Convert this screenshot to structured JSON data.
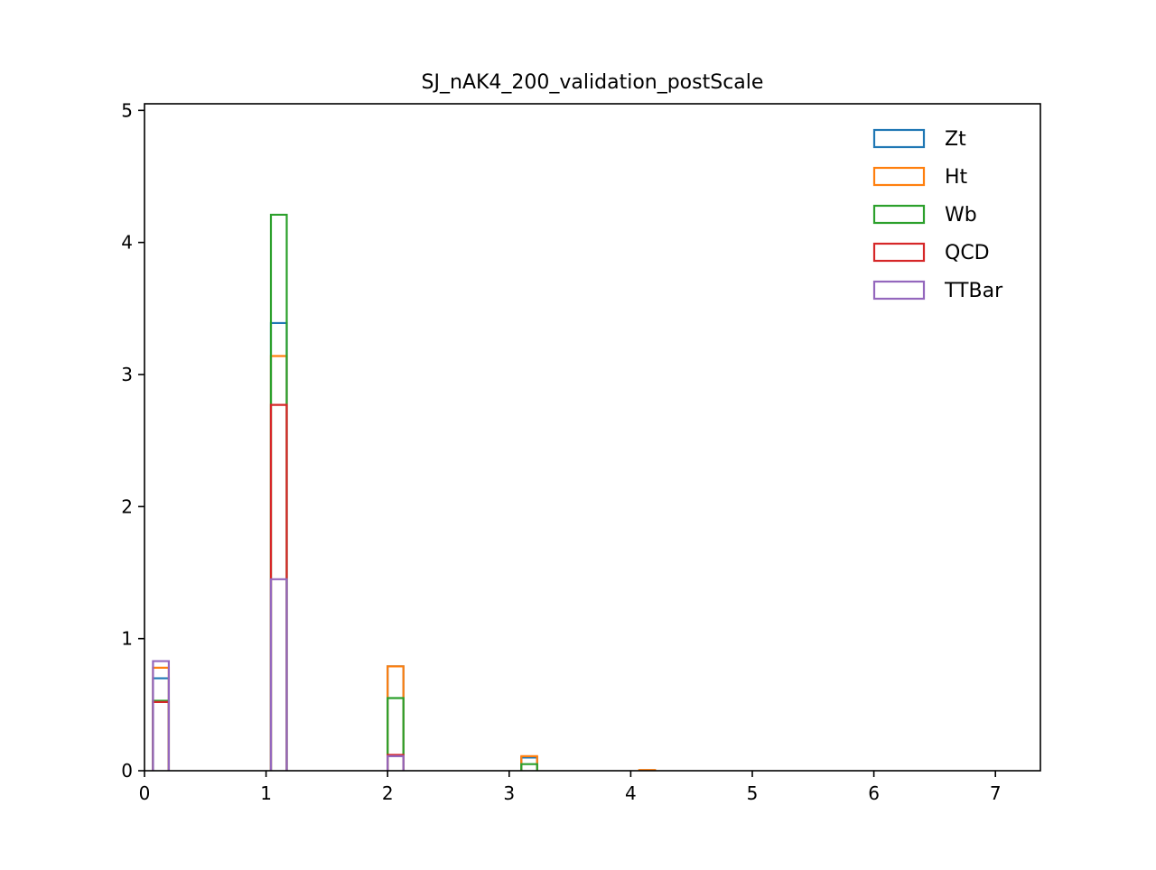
{
  "chart_data": {
    "type": "bar",
    "histtype": "step",
    "title": "SJ_nAK4_200_validation_postScale",
    "xlabel": "",
    "ylabel": "",
    "xlim": [
      0,
      7.37
    ],
    "ylim": [
      0,
      5.05
    ],
    "xticks": [
      "0",
      "1",
      "2",
      "3",
      "4",
      "5",
      "6",
      "7"
    ],
    "yticks": [
      "0",
      "1",
      "2",
      "3",
      "4",
      "5"
    ],
    "legend_position": "top-right",
    "bins": [
      [
        0.07,
        0.2
      ],
      [
        1.04,
        1.17
      ],
      [
        2.0,
        2.13
      ],
      [
        3.1,
        3.23
      ],
      [
        4.07,
        4.2
      ]
    ],
    "series": [
      {
        "name": "Zt",
        "color": "#1f77b4",
        "values": [
          0.7,
          3.39,
          0.79,
          0.1,
          0.0
        ]
      },
      {
        "name": "Ht",
        "color": "#ff7f0e",
        "values": [
          0.78,
          3.14,
          0.79,
          0.11,
          0.005
        ]
      },
      {
        "name": "Wb",
        "color": "#2ca02c",
        "values": [
          0.53,
          4.21,
          0.55,
          0.05,
          0.0
        ]
      },
      {
        "name": "QCD",
        "color": "#d62728",
        "values": [
          0.52,
          2.77,
          0.12,
          0.0,
          0.0
        ]
      },
      {
        "name": "TTBar",
        "color": "#9467bd",
        "values": [
          0.83,
          1.45,
          0.11,
          0.0,
          0.0
        ]
      }
    ]
  }
}
